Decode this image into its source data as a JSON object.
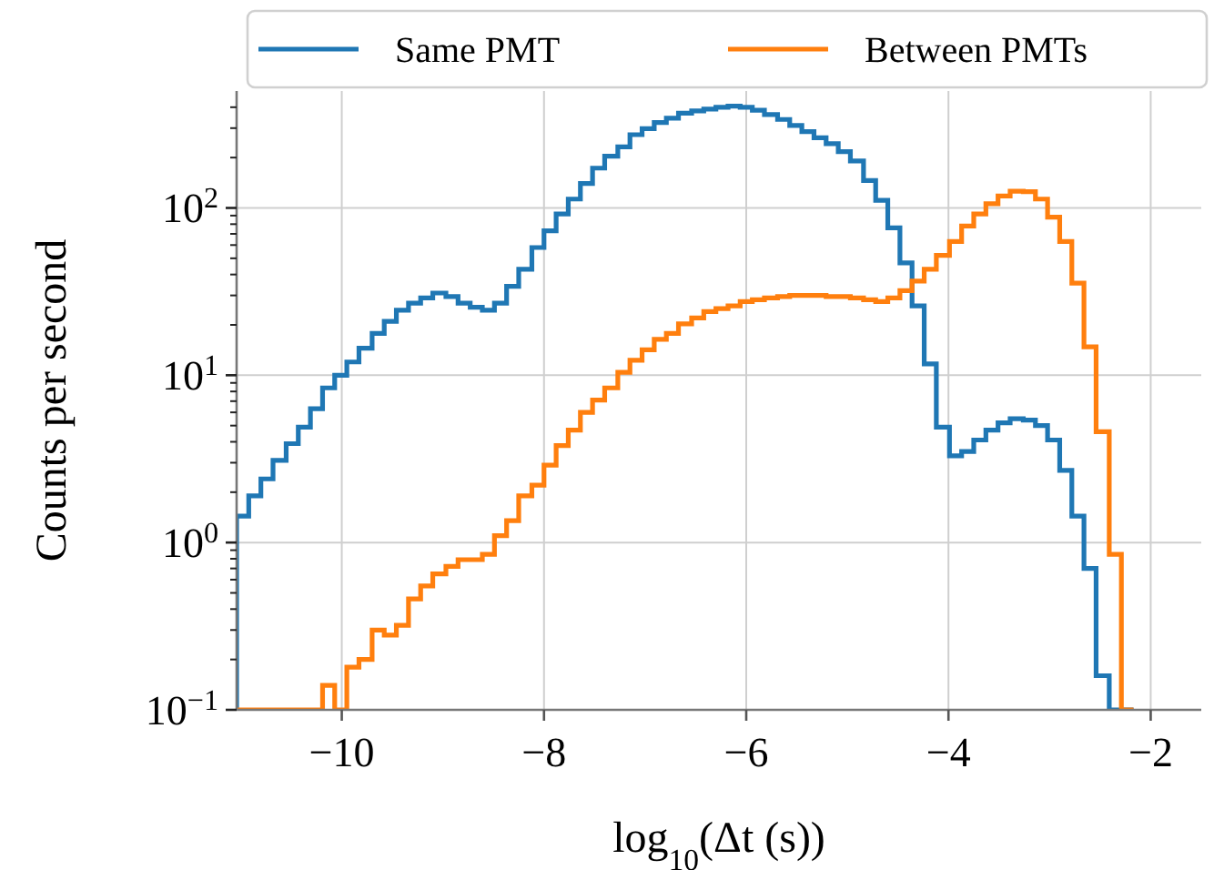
{
  "chart_data": {
    "type": "histogram",
    "xlabel": "log$_{10}$(Δt (s))",
    "ylabel": "Counts per second",
    "bins": [
      -11.04,
      -10.92,
      -10.8,
      -10.68,
      -10.55,
      -10.43,
      -10.31,
      -10.19,
      -10.07,
      -9.95,
      -9.83,
      -9.7,
      -9.58,
      -9.46,
      -9.34,
      -9.22,
      -9.1,
      -8.97,
      -8.85,
      -8.73,
      -8.61,
      -8.49,
      -8.37,
      -8.25,
      -8.12,
      -8.0,
      -7.88,
      -7.76,
      -7.64,
      -7.52,
      -7.4,
      -7.27,
      -7.15,
      -7.03,
      -6.91,
      -6.79,
      -6.67,
      -6.54,
      -6.42,
      -6.3,
      -6.18,
      -6.06,
      -5.94,
      -5.82,
      -5.69,
      -5.57,
      -5.45,
      -5.33,
      -5.21,
      -5.09,
      -4.97,
      -4.84,
      -4.72,
      -4.6,
      -4.48,
      -4.36,
      -4.24,
      -4.12,
      -3.99,
      -3.87,
      -3.75,
      -3.63,
      -3.51,
      -3.39,
      -3.26,
      -3.14,
      -3.02,
      -2.9,
      -2.78,
      -2.66,
      -2.54,
      -2.41,
      -2.29,
      -2.17
    ],
    "series": [
      {
        "name": "Same PMT",
        "color": "#1f77b4",
        "values": [
          1.44,
          1.9,
          2.4,
          3.1,
          3.9,
          4.9,
          6.3,
          8.4,
          10,
          12,
          14.5,
          17.8,
          21,
          24.5,
          27,
          29,
          31,
          29.5,
          27,
          25.5,
          24.5,
          27,
          34,
          43,
          58,
          73,
          92,
          113,
          140,
          173,
          204,
          232,
          274,
          298,
          324,
          344,
          368,
          380,
          390,
          400,
          406,
          400,
          384,
          362,
          338,
          311,
          286,
          263,
          242,
          217,
          191,
          146,
          111,
          76,
          47,
          26,
          11.7,
          4.9,
          3.3,
          3.5,
          4.1,
          4.7,
          5.2,
          5.5,
          5.4,
          5.0,
          4.1,
          2.7,
          1.44,
          0.7,
          0.16,
          null,
          null
        ]
      },
      {
        "name": "Between PMTs",
        "color": "#ff7f0e",
        "values": [
          null,
          null,
          null,
          null,
          null,
          null,
          null,
          0.14,
          null,
          0.18,
          0.2,
          0.3,
          0.28,
          0.32,
          0.46,
          0.55,
          0.65,
          0.72,
          0.79,
          0.79,
          0.85,
          1.1,
          1.35,
          1.9,
          2.2,
          2.9,
          3.8,
          4.7,
          6.0,
          7.1,
          8.4,
          10.4,
          12.3,
          14.2,
          16.4,
          17.8,
          20.3,
          22,
          24,
          25,
          26,
          27.6,
          28.3,
          29,
          29.5,
          30,
          30,
          30,
          29.5,
          29.5,
          29,
          28.3,
          27.6,
          29,
          32,
          36.5,
          43,
          52,
          63,
          78,
          92,
          106,
          118,
          126,
          125,
          113,
          88,
          63,
          35.5,
          14.8,
          4.6,
          0.85,
          null
        ]
      }
    ],
    "xlim": [
      -11.04,
      -1.5
    ],
    "xticks": [
      {
        "value": -10,
        "label": "−10"
      },
      {
        "value": -8,
        "label": "−8"
      },
      {
        "value": -6,
        "label": "−6"
      },
      {
        "value": -4,
        "label": "−4"
      },
      {
        "value": -2,
        "label": "−2"
      }
    ],
    "ylim": [
      0.1,
      500
    ],
    "log": "y",
    "yticks": [
      {
        "value": 0.1,
        "label": "10$^{−1}$"
      },
      {
        "value": 0.2,
        "label": null
      },
      {
        "value": 0.3,
        "label": null
      },
      {
        "value": 0.4,
        "label": null
      },
      {
        "value": 0.5,
        "label": null
      },
      {
        "value": 0.6,
        "label": null
      },
      {
        "value": 0.7,
        "label": null
      },
      {
        "value": 0.8,
        "label": null
      },
      {
        "value": 0.9,
        "label": null
      },
      {
        "value": 1,
        "label": "10$^{0}$"
      },
      {
        "value": 2,
        "label": null
      },
      {
        "value": 3,
        "label": null
      },
      {
        "value": 4,
        "label": null
      },
      {
        "value": 5,
        "label": null
      },
      {
        "value": 6,
        "label": null
      },
      {
        "value": 7,
        "label": null
      },
      {
        "value": 8,
        "label": null
      },
      {
        "value": 9,
        "label": null
      },
      {
        "value": 10,
        "label": "10$^{1}$"
      },
      {
        "value": 20,
        "label": null
      },
      {
        "value": 30,
        "label": null
      },
      {
        "value": 40,
        "label": null
      },
      {
        "value": 50,
        "label": null
      },
      {
        "value": 60,
        "label": null
      },
      {
        "value": 70,
        "label": null
      },
      {
        "value": 80,
        "label": null
      },
      {
        "value": 90,
        "label": null
      },
      {
        "value": 100,
        "label": "10$^{2}$"
      },
      {
        "value": 200,
        "label": null
      },
      {
        "value": 300,
        "label": null
      },
      {
        "value": 400,
        "label": null
      }
    ],
    "grid": true,
    "legend": "top right"
  }
}
